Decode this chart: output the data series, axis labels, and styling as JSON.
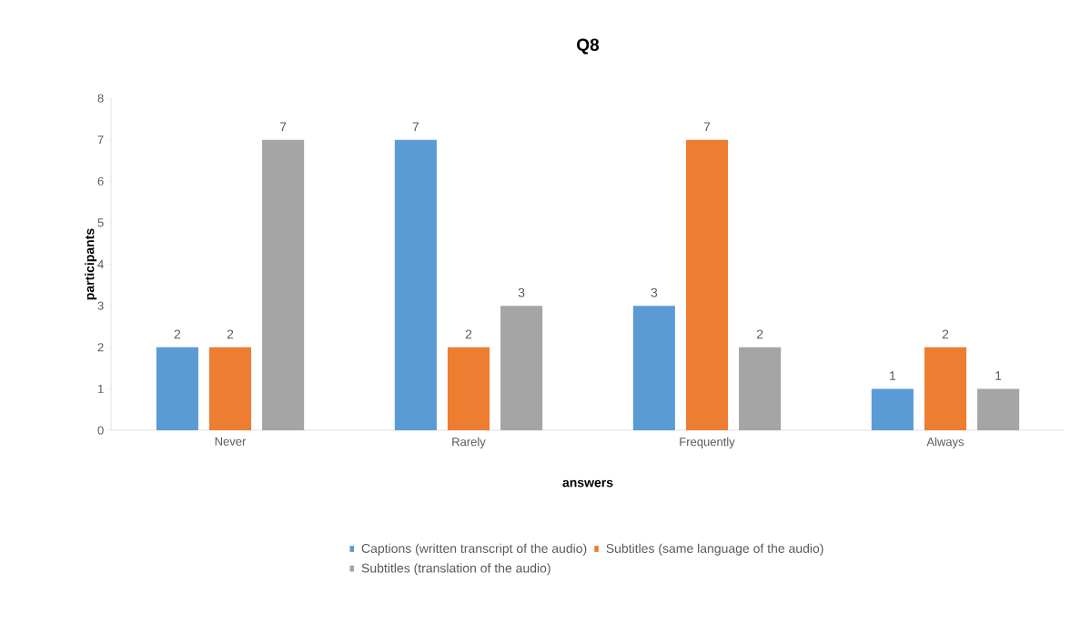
{
  "chart_data": {
    "type": "bar",
    "title": "Q8",
    "xlabel": "answers",
    "ylabel": "participants",
    "categories": [
      "Never",
      "Rarely",
      "Frequently",
      "Always"
    ],
    "series": [
      {
        "name": "Captions (written transcript of the audio)",
        "color": "#5b9bd5",
        "values": [
          2,
          7,
          3,
          1
        ]
      },
      {
        "name": "Subtitles (same language of the audio)",
        "color": "#ed7d31",
        "values": [
          2,
          2,
          7,
          2
        ]
      },
      {
        "name": "Subtitles (translation of the audio)",
        "color": "#a5a5a5",
        "values": [
          7,
          3,
          2,
          1
        ]
      }
    ],
    "ylim": [
      0,
      8
    ],
    "yticks": [
      0,
      1,
      2,
      3,
      4,
      5,
      6,
      7,
      8
    ],
    "data_labels": true,
    "grid": false,
    "legend": "bottom"
  }
}
